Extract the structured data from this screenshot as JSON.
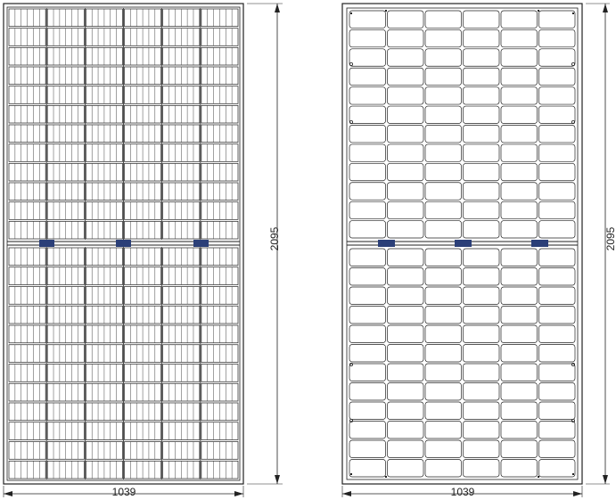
{
  "front_view": {
    "width_label": "1039",
    "height_label": "2095"
  },
  "back_view": {
    "width_label": "1039",
    "height_label": "2095"
  },
  "colors": {
    "line": "#222222",
    "junction_box": "#2b3f78"
  }
}
